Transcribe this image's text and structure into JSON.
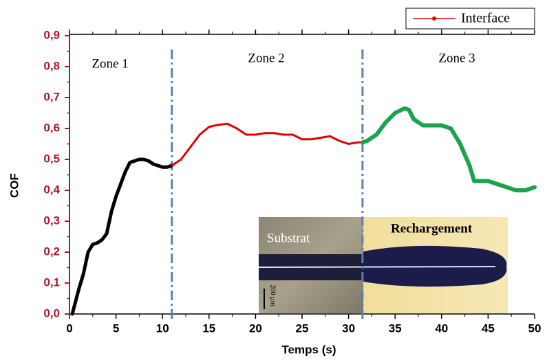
{
  "chart_data": {
    "type": "line",
    "xlabel": "Temps (s)",
    "ylabel": "COF",
    "xlim": [
      0,
      50
    ],
    "ylim": [
      0,
      0.9
    ],
    "xticks": [
      0,
      5,
      10,
      15,
      20,
      25,
      30,
      35,
      40,
      45,
      50
    ],
    "yticks": [
      {
        "value": 0,
        "label": "0,0"
      },
      {
        "value": 0.1,
        "label": "0,1"
      },
      {
        "value": 0.2,
        "label": "0,2"
      },
      {
        "value": 0.3,
        "label": "0,3"
      },
      {
        "value": 0.4,
        "label": "0,4"
      },
      {
        "value": 0.5,
        "label": "0,5"
      },
      {
        "value": 0.6,
        "label": "0,6"
      },
      {
        "value": 0.7,
        "label": "0,7"
      },
      {
        "value": 0.8,
        "label": "0,8"
      },
      {
        "value": 0.9,
        "label": "0,9"
      }
    ],
    "vlines": [
      11,
      31.5
    ],
    "vline_color": "#5b80b8",
    "annotations": [
      "Zone 1",
      "Zone 2",
      "Zone 3"
    ],
    "legend": "top-right",
    "series": [
      {
        "color": "#000000",
        "x": [
          0.3,
          1,
          1.5,
          2,
          2.5,
          3,
          3.5,
          4,
          4.5,
          5,
          5.5,
          6,
          6.5,
          7,
          7.5,
          8,
          8.5,
          9,
          9.5,
          10,
          10.5,
          11
        ],
        "values": [
          0,
          0.08,
          0.13,
          0.2,
          0.225,
          0.23,
          0.24,
          0.26,
          0.33,
          0.38,
          0.42,
          0.46,
          0.49,
          0.495,
          0.5,
          0.5,
          0.495,
          0.485,
          0.48,
          0.475,
          0.475,
          0.48
        ]
      },
      {
        "name": "Interface",
        "color": "#e00000",
        "x": [
          11,
          12,
          13,
          14,
          15,
          16,
          17,
          18,
          19,
          20,
          21,
          22,
          23,
          24,
          25,
          26,
          27,
          28,
          29,
          30,
          31,
          31.5
        ],
        "values": [
          0.48,
          0.5,
          0.54,
          0.58,
          0.605,
          0.612,
          0.615,
          0.6,
          0.58,
          0.58,
          0.585,
          0.585,
          0.58,
          0.58,
          0.565,
          0.565,
          0.57,
          0.575,
          0.56,
          0.55,
          0.555,
          0.555
        ]
      },
      {
        "color": "#1aa34a",
        "x": [
          31.5,
          32,
          33,
          34,
          35,
          36,
          36.5,
          37,
          38,
          39,
          40,
          41,
          42,
          43,
          43.5,
          44,
          45,
          46,
          47,
          48,
          49,
          50
        ],
        "values": [
          0.555,
          0.56,
          0.58,
          0.62,
          0.65,
          0.665,
          0.66,
          0.63,
          0.61,
          0.61,
          0.61,
          0.6,
          0.55,
          0.48,
          0.43,
          0.43,
          0.43,
          0.42,
          0.41,
          0.4,
          0.4,
          0.41
        ]
      }
    ],
    "inset": {
      "labels": [
        "Substrat",
        "Rechargement"
      ],
      "scale_bar": "200 µm"
    }
  }
}
